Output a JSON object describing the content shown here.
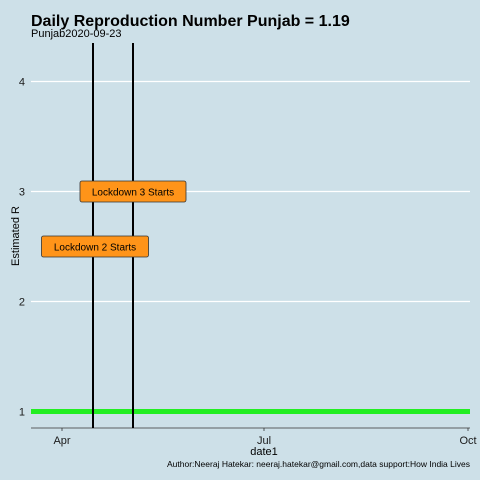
{
  "chart_data": {
    "type": "line",
    "title": "Daily Reproduction Number Punjab = 1.19",
    "subtitle": "Punjab2020-09-23",
    "xlabel": "date1",
    "ylabel": "Estimated R",
    "caption": "Author:Neeraj Hatekar: neeraj.hatekar@gmail.com,data support:How India Lives",
    "x_ticks": [
      "Apr",
      "Jul",
      "Oct"
    ],
    "y_ticks": [
      1,
      2,
      3,
      4
    ],
    "ylim": [
      0.85,
      4.35
    ],
    "grid": true,
    "colors": {
      "background": "#cde0e8",
      "reference_line": "#22ee22",
      "event_line": "#000000",
      "label_fill": "#ff9419",
      "gridline": "#ffffff"
    },
    "reference_line": {
      "y": 1
    },
    "events": [
      {
        "date": "Lockdown 2"
      },
      {
        "date": "Lockdown 3"
      }
    ],
    "annotations": [
      {
        "label": "Lockdown 2 Starts",
        "y": 2.5
      },
      {
        "label": "Lockdown 3 Starts",
        "y": 3.0
      }
    ]
  }
}
